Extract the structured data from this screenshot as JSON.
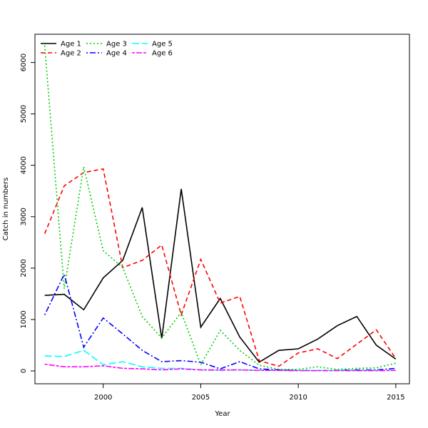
{
  "chart_data": {
    "type": "line",
    "title": "",
    "xlabel": "Year",
    "ylabel": "Catch in numbers",
    "xlim": [
      1996.5,
      2015.7
    ],
    "ylim": [
      -250,
      6550
    ],
    "x_ticks": [
      2000,
      2005,
      2010,
      2015
    ],
    "y_ticks": [
      0,
      1000,
      2000,
      3000,
      4000,
      5000,
      6000
    ],
    "grid": false,
    "legend_position": "top-left",
    "x": [
      1997,
      1998,
      1999,
      2000,
      2001,
      2002,
      2003,
      2004,
      2005,
      2006,
      2007,
      2008,
      2009,
      2010,
      2011,
      2012,
      2013,
      2014,
      2015
    ],
    "series": [
      {
        "name": "Age 1",
        "color": "#000000",
        "dash": "solid",
        "values": [
          1470,
          1490,
          1190,
          1810,
          2150,
          3180,
          630,
          3540,
          850,
          1410,
          660,
          170,
          400,
          430,
          620,
          880,
          1060,
          500,
          230
        ]
      },
      {
        "name": "Age 2",
        "color": "#ff0000",
        "dash": "dashed",
        "values": [
          2670,
          3600,
          3860,
          3930,
          2010,
          2150,
          2450,
          1090,
          2170,
          1320,
          1450,
          200,
          90,
          350,
          430,
          240,
          520,
          800,
          240
        ]
      },
      {
        "name": "Age 3",
        "color": "#00cd00",
        "dash": "dotted",
        "values": [
          6330,
          1600,
          3970,
          2340,
          2010,
          1060,
          640,
          1140,
          120,
          790,
          400,
          110,
          30,
          30,
          80,
          30,
          50,
          60,
          150
        ]
      },
      {
        "name": "Age 4",
        "color": "#0000ff",
        "dash": "dotdash",
        "values": [
          1090,
          1880,
          460,
          1030,
          720,
          400,
          180,
          200,
          170,
          40,
          180,
          40,
          20,
          10,
          10,
          10,
          20,
          20,
          50
        ]
      },
      {
        "name": "Age 5",
        "color": "#00ffff",
        "dash": "longdash",
        "values": [
          290,
          280,
          400,
          120,
          180,
          80,
          50,
          50,
          20,
          10,
          20,
          10,
          10,
          10,
          10,
          10,
          10,
          10,
          10
        ]
      },
      {
        "name": "Age 6",
        "color": "#ff00ff",
        "dash": "twodash",
        "values": [
          130,
          80,
          80,
          100,
          50,
          40,
          20,
          40,
          20,
          20,
          20,
          10,
          10,
          5,
          5,
          5,
          5,
          5,
          10
        ]
      }
    ]
  }
}
